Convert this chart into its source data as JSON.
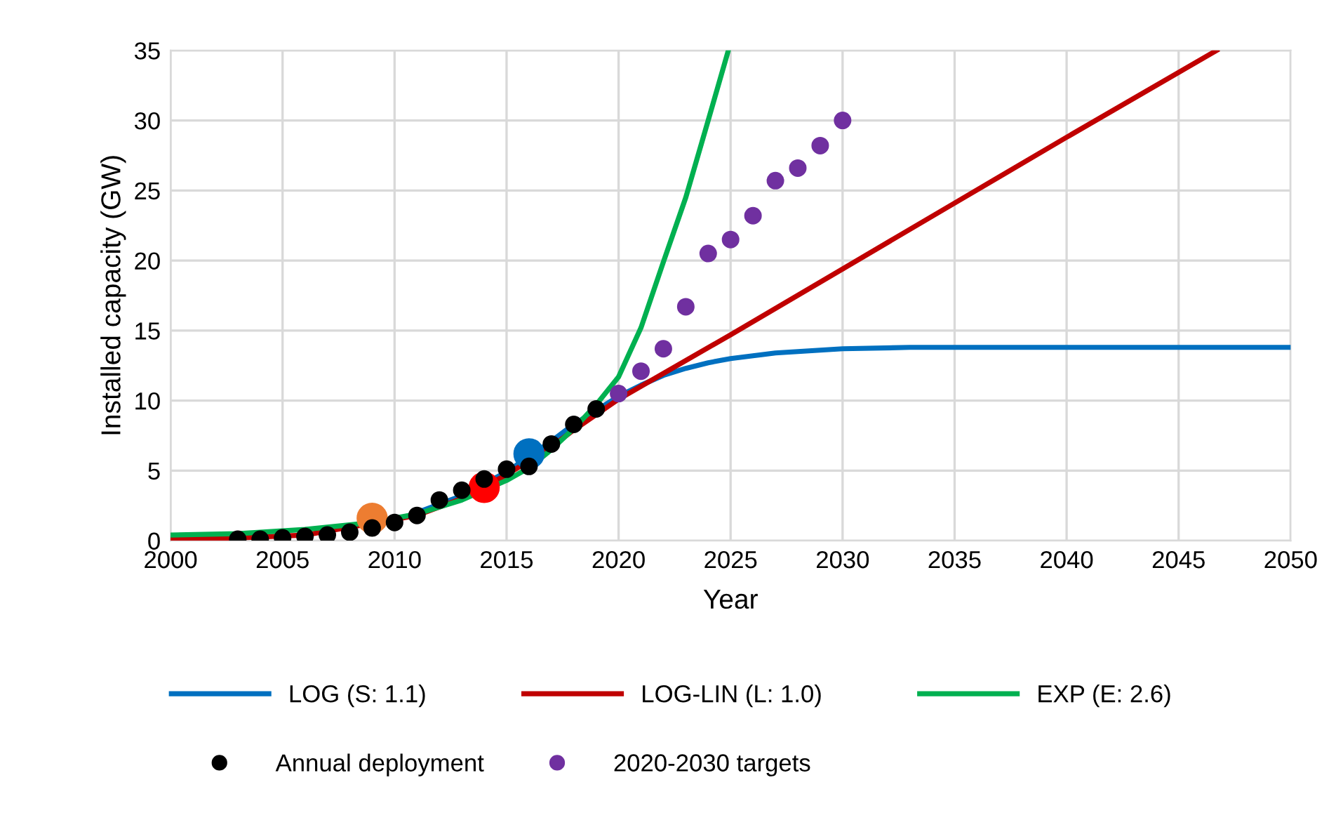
{
  "chart_data": {
    "type": "line",
    "xlabel": "Year",
    "ylabel": "Installed capacity (GW)",
    "xlim": [
      2000,
      2050
    ],
    "xticks": [
      2000,
      2005,
      2010,
      2015,
      2020,
      2025,
      2030,
      2035,
      2040,
      2045,
      2050
    ],
    "ylim": [
      0,
      35
    ],
    "yticks": [
      0,
      5,
      10,
      15,
      20,
      25,
      30,
      35
    ],
    "grid": true,
    "legend": "bottom",
    "series": [
      {
        "name": "LOG (S: 1.1)",
        "color": "#0070c0",
        "x": [
          2011,
          2013,
          2015,
          2016,
          2017,
          2018,
          2019,
          2020,
          2021,
          2022,
          2023,
          2024,
          2025,
          2026,
          2027,
          2028,
          2029,
          2030,
          2033,
          2036,
          2040,
          2050
        ],
        "values": [
          2.0,
          3.2,
          4.9,
          6.0,
          7.1,
          8.3,
          9.3,
          10.3,
          11.1,
          11.8,
          12.3,
          12.7,
          13.0,
          13.2,
          13.4,
          13.5,
          13.6,
          13.7,
          13.8,
          13.8,
          13.8,
          13.8
        ]
      },
      {
        "name": "LOG-LIN (L: 1.0)",
        "color": "#c00000",
        "x": [
          2000,
          2003,
          2006,
          2011,
          2013,
          2015,
          2017,
          2018,
          2019,
          2020,
          2025,
          2030,
          2035,
          2040,
          2046.7
        ],
        "values": [
          0.1,
          0.2,
          0.4,
          1.8,
          3.0,
          4.7,
          6.7,
          7.9,
          9.0,
          10.1,
          14.7,
          19.4,
          24.1,
          28.8,
          35
        ]
      },
      {
        "name": "EXP (E: 2.6)",
        "color": "#00b050",
        "x": [
          2000,
          2003,
          2006,
          2009,
          2011,
          2013,
          2015,
          2016,
          2017,
          2018,
          2019,
          2020,
          2021,
          2022,
          2023,
          2024,
          2024.9
        ],
        "values": [
          0.4,
          0.5,
          0.8,
          1.3,
          1.9,
          2.9,
          4.3,
          5.2,
          6.5,
          8.0,
          9.7,
          11.7,
          15.2,
          19.9,
          24.5,
          30.0,
          35
        ]
      },
      {
        "type": "scatter",
        "color": "#ed7d31",
        "marker": "circle",
        "x": [
          2009
        ],
        "values": [
          1.6
        ]
      },
      {
        "type": "scatter",
        "color": "#ff0000",
        "marker": "circle",
        "x": [
          2014
        ],
        "values": [
          3.8
        ]
      },
      {
        "type": "scatter",
        "color": "#0070c0",
        "marker": "circle",
        "x": [
          2016
        ],
        "values": [
          6.2
        ]
      },
      {
        "name": "Annual deployment",
        "type": "scatter",
        "color": "#000000",
        "marker": "circle",
        "x": [
          2003,
          2004,
          2005,
          2006,
          2007,
          2008,
          2009,
          2010,
          2011,
          2012,
          2013,
          2014,
          2015,
          2016,
          2017,
          2018,
          2019
        ],
        "values": [
          0.1,
          0.1,
          0.2,
          0.3,
          0.4,
          0.6,
          0.9,
          1.3,
          1.8,
          2.9,
          3.6,
          4.4,
          5.1,
          5.3,
          6.9,
          8.3,
          9.4
        ]
      },
      {
        "name": "2020-2030 targets",
        "type": "scatter",
        "color": "#7030a0",
        "marker": "circle",
        "x": [
          2020,
          2021,
          2022,
          2023,
          2024,
          2025,
          2026,
          2027,
          2028,
          2029,
          2030
        ],
        "values": [
          10.5,
          12.1,
          13.7,
          16.7,
          20.5,
          21.5,
          23.2,
          25.7,
          26.6,
          28.2,
          30.0
        ]
      }
    ]
  }
}
